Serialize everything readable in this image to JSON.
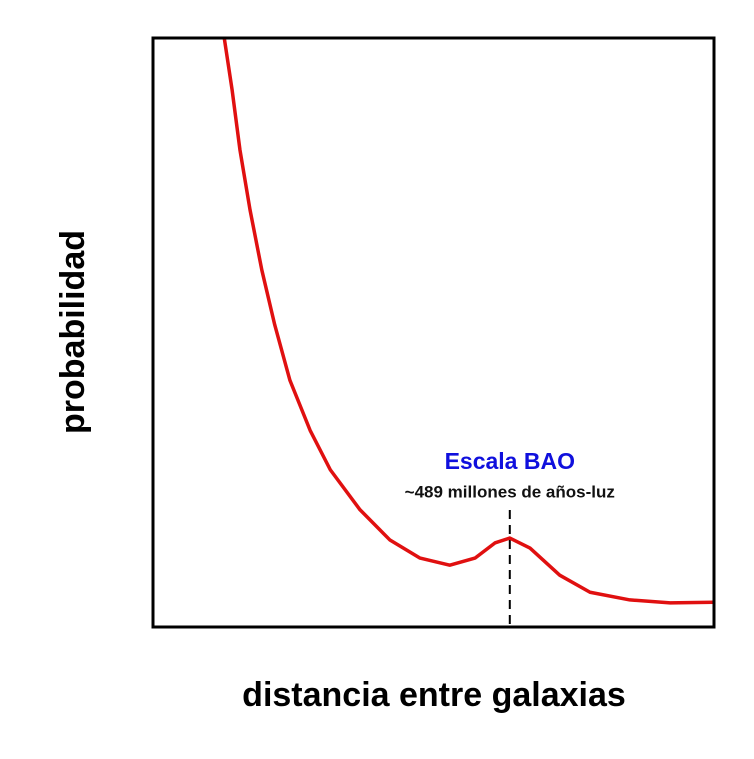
{
  "chart_data": {
    "type": "line",
    "x_label": "distancia entre galaxias",
    "y_label": "probabilidad",
    "annotation": {
      "title": "Escala BAO",
      "subtitle": "~489 millones de años-luz",
      "x": 63.6,
      "title_color": "#1010dd"
    },
    "x": [
      12.7,
      14.1,
      15.5,
      17.3,
      19.4,
      21.7,
      24.4,
      28,
      31.6,
      36.9,
      42.2,
      47.6,
      52.9,
      57.4,
      61,
      63.6,
      67.2,
      72.5,
      77.9,
      85,
      92.2,
      100
    ],
    "values": [
      100,
      91.2,
      81,
      70.8,
      60.6,
      51.3,
      41.9,
      33.4,
      26.7,
      19.9,
      14.8,
      11.7,
      10.5,
      11.7,
      14.3,
      15.1,
      13.4,
      8.8,
      5.9,
      4.6,
      4.1,
      4.2
    ],
    "color": "#e01010",
    "xlim": [
      0,
      100
    ],
    "ylim": [
      0,
      100
    ]
  }
}
